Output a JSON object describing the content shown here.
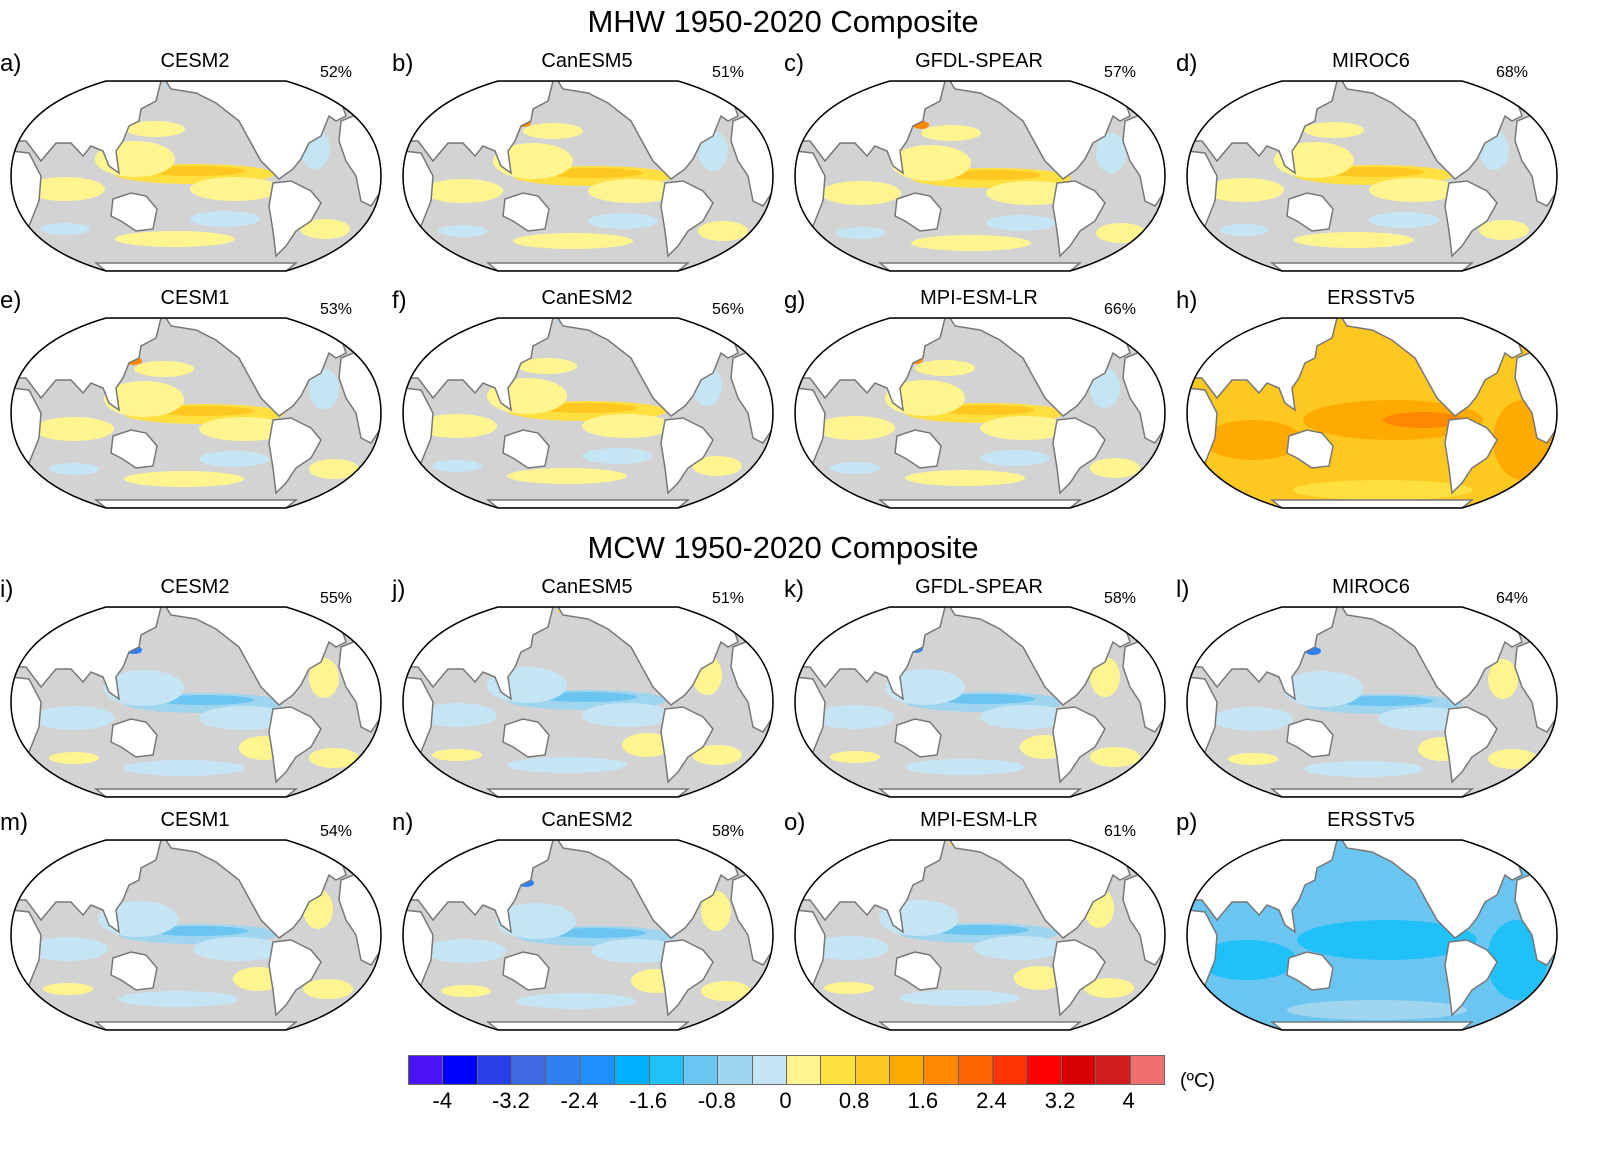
{
  "sections": [
    {
      "title": "MHW 1950-2020 Composite",
      "mode": "warm",
      "panels": [
        {
          "label": "a)",
          "model": "CESM2",
          "percent": "52%"
        },
        {
          "label": "b)",
          "model": "CanESM5",
          "percent": "51%"
        },
        {
          "label": "c)",
          "model": "GFDL-SPEAR",
          "percent": "57%"
        },
        {
          "label": "d)",
          "model": "MIROC6",
          "percent": "68%"
        },
        {
          "label": "e)",
          "model": "CESM1",
          "percent": "53%"
        },
        {
          "label": "f)",
          "model": "CanESM2",
          "percent": "56%"
        },
        {
          "label": "g)",
          "model": "MPI-ESM-LR",
          "percent": "66%"
        },
        {
          "label": "h)",
          "model": "ERSSTv5",
          "percent": null,
          "observed": true
        }
      ]
    },
    {
      "title": "MCW 1950-2020 Composite",
      "mode": "cool",
      "panels": [
        {
          "label": "i)",
          "model": "CESM2",
          "percent": "55%"
        },
        {
          "label": "j)",
          "model": "CanESM5",
          "percent": "51%"
        },
        {
          "label": "k)",
          "model": "GFDL-SPEAR",
          "percent": "58%"
        },
        {
          "label": "l)",
          "model": "MIROC6",
          "percent": "64%"
        },
        {
          "label": "m)",
          "model": "CESM1",
          "percent": "54%"
        },
        {
          "label": "n)",
          "model": "CanESM2",
          "percent": "58%"
        },
        {
          "label": "o)",
          "model": "MPI-ESM-LR",
          "percent": "61%"
        },
        {
          "label": "p)",
          "model": "ERSSTv5",
          "percent": null,
          "observed": true
        }
      ]
    }
  ],
  "colorbar": {
    "unit": "(ºC)",
    "ticks": [
      "-4",
      "-3.2",
      "-2.4",
      "-1.6",
      "-0.8",
      "0",
      "0.8",
      "1.6",
      "2.4",
      "3.2",
      "4"
    ],
    "colors": [
      "#4a14f4",
      "#0000ff",
      "#2840e8",
      "#3c6ae0",
      "#3080f0",
      "#1e90ff",
      "#00b0ff",
      "#20c0f8",
      "#6ac5f0",
      "#a0d5f0",
      "#c5e5f5",
      "#fff590",
      "#ffe040",
      "#ffc820",
      "#ffaa00",
      "#ff8800",
      "#ff6600",
      "#ff3300",
      "#ff0000",
      "#d80000",
      "#d01c1c",
      "#f07070"
    ],
    "neutral_color": "#d3d3d3"
  }
}
